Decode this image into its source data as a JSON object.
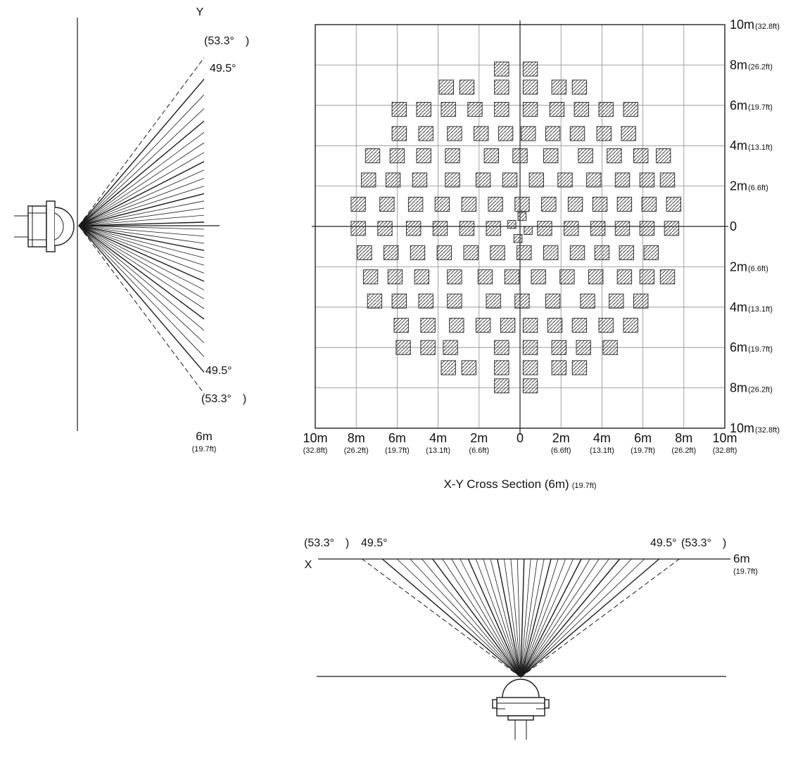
{
  "colors": {
    "ink": "#1a1a1a",
    "grid": "#8c8c8c",
    "hatch": "#3a3a3a"
  },
  "beams": {
    "solid_half_angle_deg": 49.5,
    "dashed_half_angle_deg": 53.3,
    "solid_line_count": 32
  },
  "y_section": {
    "axis_label": "Y",
    "angle_outer_top": "(53.3°　)",
    "angle_inner_top": "49.5°",
    "angle_inner_bottom": "49.5°",
    "angle_outer_bottom": "(53.3°　)",
    "range_label": "6m",
    "range_label_ft": "(19.7ft)"
  },
  "xy_section": {
    "caption": "X-Y Cross Section (6m)",
    "caption_ft": "(19.7ft)",
    "axis_values": [
      10,
      8,
      6,
      4,
      2,
      0,
      -2,
      -4,
      -6,
      -8,
      -10
    ],
    "axis_labels_m": [
      "10m",
      "8m",
      "6m",
      "4m",
      "2m",
      "0",
      "2m",
      "4m",
      "6m",
      "8m",
      "10m"
    ],
    "axis_labels_ft": [
      "(32.8ft)",
      "(26.2ft)",
      "(19.7ft)",
      "(13.1ft)",
      "(6.6ft)",
      "",
      "(6.6ft)",
      "(13.1ft)",
      "(19.7ft)",
      "(26.2ft)",
      "(32.8ft)"
    ],
    "zones": {
      "cell_size_m": 0.7,
      "cells": [
        [
          -0.9,
          7.8
        ],
        [
          0.5,
          7.8
        ],
        [
          -3.6,
          6.9
        ],
        [
          -2.6,
          6.9
        ],
        [
          -0.9,
          6.9
        ],
        [
          0.5,
          6.9
        ],
        [
          1.9,
          6.9
        ],
        [
          2.9,
          6.9
        ],
        [
          -5.9,
          5.8
        ],
        [
          -4.7,
          5.8
        ],
        [
          -3.5,
          5.8
        ],
        [
          -2.2,
          5.8
        ],
        [
          -0.9,
          5.8
        ],
        [
          0.5,
          5.8
        ],
        [
          1.8,
          5.8
        ],
        [
          3.0,
          5.8
        ],
        [
          4.2,
          5.8
        ],
        [
          5.4,
          5.8
        ],
        [
          -5.9,
          4.6
        ],
        [
          -4.6,
          4.6
        ],
        [
          -3.2,
          4.6
        ],
        [
          -1.9,
          4.6
        ],
        [
          -0.7,
          4.6
        ],
        [
          0.4,
          4.6
        ],
        [
          1.6,
          4.6
        ],
        [
          2.8,
          4.6
        ],
        [
          4.1,
          4.6
        ],
        [
          5.3,
          4.6
        ],
        [
          -7.2,
          3.5
        ],
        [
          -6.0,
          3.5
        ],
        [
          -4.7,
          3.5
        ],
        [
          -3.3,
          3.5
        ],
        [
          -1.4,
          3.5
        ],
        [
          0.0,
          3.5
        ],
        [
          1.5,
          3.5
        ],
        [
          3.2,
          3.5
        ],
        [
          4.6,
          3.5
        ],
        [
          5.9,
          3.5
        ],
        [
          7.0,
          3.5
        ],
        [
          -7.4,
          2.3
        ],
        [
          -6.2,
          2.3
        ],
        [
          -4.9,
          2.3
        ],
        [
          -3.3,
          2.3
        ],
        [
          -1.8,
          2.3
        ],
        [
          -0.5,
          2.3
        ],
        [
          0.8,
          2.3
        ],
        [
          2.2,
          2.3
        ],
        [
          3.6,
          2.3
        ],
        [
          5.0,
          2.3
        ],
        [
          6.2,
          2.3
        ],
        [
          7.2,
          2.3
        ],
        [
          -7.9,
          1.1
        ],
        [
          -6.5,
          1.1
        ],
        [
          -5.1,
          1.1
        ],
        [
          -3.8,
          1.1
        ],
        [
          -2.5,
          1.1
        ],
        [
          -1.2,
          1.1
        ],
        [
          0.1,
          1.1
        ],
        [
          1.4,
          1.1
        ],
        [
          2.7,
          1.1
        ],
        [
          3.9,
          1.1
        ],
        [
          5.1,
          1.1
        ],
        [
          6.3,
          1.1
        ],
        [
          7.5,
          1.1
        ],
        [
          -7.9,
          -0.1
        ],
        [
          -6.6,
          -0.1
        ],
        [
          -5.2,
          -0.1
        ],
        [
          -3.9,
          -0.1
        ],
        [
          -2.6,
          -0.1
        ],
        [
          -1.3,
          -0.1
        ],
        [
          1.2,
          -0.1
        ],
        [
          2.5,
          -0.1
        ],
        [
          3.8,
          -0.1
        ],
        [
          5.0,
          -0.1
        ],
        [
          6.2,
          -0.1
        ],
        [
          7.4,
          -0.1
        ],
        [
          -7.6,
          -1.3
        ],
        [
          -6.3,
          -1.3
        ],
        [
          -5.0,
          -1.3
        ],
        [
          -3.7,
          -1.3
        ],
        [
          -2.4,
          -1.3
        ],
        [
          -1.1,
          -1.3
        ],
        [
          0.2,
          -1.3
        ],
        [
          1.5,
          -1.3
        ],
        [
          2.8,
          -1.3
        ],
        [
          4.0,
          -1.3
        ],
        [
          5.2,
          -1.3
        ],
        [
          6.4,
          -1.3
        ],
        [
          -7.3,
          -2.5
        ],
        [
          -6.1,
          -2.5
        ],
        [
          -4.8,
          -2.5
        ],
        [
          -3.2,
          -2.5
        ],
        [
          -1.7,
          -2.5
        ],
        [
          -0.4,
          -2.5
        ],
        [
          0.9,
          -2.5
        ],
        [
          2.3,
          -2.5
        ],
        [
          3.7,
          -2.5
        ],
        [
          5.1,
          -2.5
        ],
        [
          6.2,
          -2.5
        ],
        [
          7.2,
          -2.5
        ],
        [
          -7.1,
          -3.7
        ],
        [
          -5.9,
          -3.7
        ],
        [
          -4.6,
          -3.7
        ],
        [
          -3.2,
          -3.7
        ],
        [
          -1.3,
          -3.7
        ],
        [
          0.1,
          -3.7
        ],
        [
          1.6,
          -3.7
        ],
        [
          3.3,
          -3.7
        ],
        [
          4.7,
          -3.7
        ],
        [
          5.9,
          -3.7
        ],
        [
          -5.8,
          -4.9
        ],
        [
          -4.5,
          -4.9
        ],
        [
          -3.1,
          -4.9
        ],
        [
          -1.8,
          -4.9
        ],
        [
          -0.6,
          -4.9
        ],
        [
          0.5,
          -4.9
        ],
        [
          1.7,
          -4.9
        ],
        [
          2.9,
          -4.9
        ],
        [
          4.2,
          -4.9
        ],
        [
          5.4,
          -4.9
        ],
        [
          -5.7,
          -6.0
        ],
        [
          -4.5,
          -6.0
        ],
        [
          -3.4,
          -6.0
        ],
        [
          -0.9,
          -6.0
        ],
        [
          0.5,
          -6.0
        ],
        [
          1.9,
          -6.0
        ],
        [
          3.1,
          -6.0
        ],
        [
          4.4,
          -6.0
        ],
        [
          -3.5,
          -7.0
        ],
        [
          -2.5,
          -7.0
        ],
        [
          -0.9,
          -7.0
        ],
        [
          0.5,
          -7.0
        ],
        [
          1.9,
          -7.0
        ],
        [
          2.9,
          -7.0
        ],
        [
          -0.9,
          -7.9
        ],
        [
          0.5,
          -7.9
        ]
      ],
      "small_cell_size_m": 0.4,
      "small_cells": [
        [
          0.1,
          0.5
        ],
        [
          -0.4,
          0.1
        ],
        [
          0.4,
          -0.2
        ],
        [
          -0.1,
          -0.6
        ]
      ]
    }
  },
  "x_section": {
    "axis_label": "X",
    "angle_outer_left": "(53.3°　)",
    "angle_inner_left": "49.5°",
    "angle_inner_right": "49.5°",
    "angle_outer_right": "(53.3°　)",
    "range_label": "6m",
    "range_label_ft": "(19.7ft)"
  }
}
